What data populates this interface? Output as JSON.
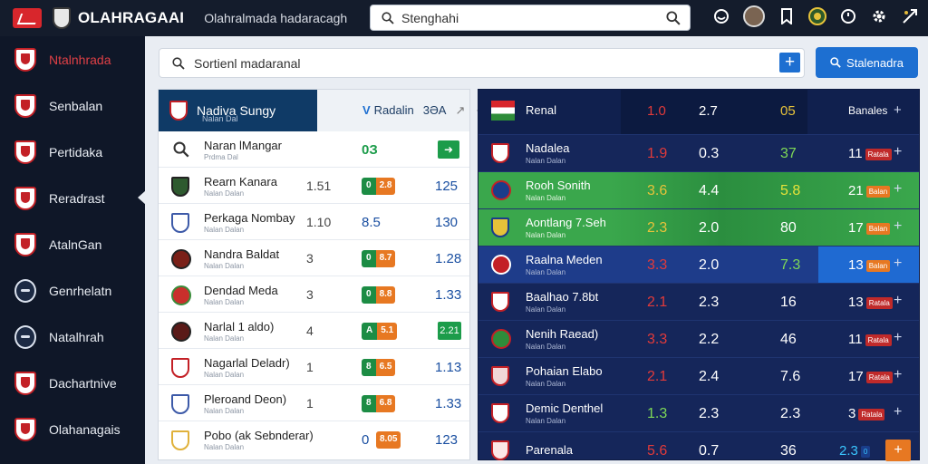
{
  "topbar": {
    "brand": "OLAHRAGAAI",
    "subtitle": "Olahralmada hadaracagh",
    "search_value": "Stenghahi"
  },
  "sidebar": {
    "items": [
      {
        "label": "Ntalnhrada",
        "active": true
      },
      {
        "label": "Senbalan"
      },
      {
        "label": "Pertidaka"
      },
      {
        "label": "Reradrast"
      },
      {
        "label": "AtalnGan"
      },
      {
        "label": "Genrhelatn"
      },
      {
        "label": "Natalhrah"
      },
      {
        "label": "Dachartnive"
      },
      {
        "label": "Olahanagais"
      }
    ]
  },
  "center_search": {
    "label": "Sortienl madaranal",
    "button_label": "Stalenadra"
  },
  "left_panel": {
    "header": {
      "title": "Nadiva Sungy",
      "sub": "Nalan Dal",
      "tab_label": "Radalin",
      "tab_odd": "3ƏA"
    },
    "search_row": {
      "name": "Naran lMangar",
      "sub": "Prdma Dal",
      "value": "0З"
    },
    "rows": [
      {
        "name": "Rearn Kanara",
        "sub": "Nalan Dalan",
        "c1": "1.51",
        "pill_a": "0",
        "pill_b": "2.8",
        "c3": "125"
      },
      {
        "name": "Perkaga Nombay",
        "sub": "Nalan Dalan",
        "c1": "1.10",
        "plain": "8.5",
        "c3": "130"
      },
      {
        "name": "Nandra Baldat",
        "sub": "Nalan Dalan",
        "c1": "3",
        "pill_a": "0",
        "pill_b": "8.7",
        "c3": "1.28"
      },
      {
        "name": "Dendad Meda",
        "sub": "Nalan Dalan",
        "c1": "3",
        "pill_a": "0",
        "pill_b": "8.8",
        "c3": "1.33"
      },
      {
        "name": "Narlal 1 aldo)",
        "sub": "Nalan Dalan",
        "c1": "4",
        "pill_a": "A",
        "pill_b": "5.1",
        "c3": "2.21"
      },
      {
        "name": "Nagarlal Deladr)",
        "sub": "Nalan Dalan",
        "c1": "1",
        "pill_a": "8",
        "pill_b": "6.5",
        "c3": "1.13"
      },
      {
        "name": "Pleroand Deon)",
        "sub": "Nalan Dalan",
        "c1": "1",
        "pill_a": "8",
        "pill_b": "6.8",
        "c3": "1.33"
      },
      {
        "name": "Pobo (ak Sebnderar)",
        "sub": "Nalan Dalan",
        "c1": "",
        "plain_small": "0",
        "pill_b": "8.05",
        "c3": "123"
      }
    ]
  },
  "right_panel": {
    "header": {
      "name": "Renal",
      "r1": "1.0",
      "r2": "2.7",
      "r3": "05",
      "r4": "Banales"
    },
    "rows": [
      {
        "name": "Nadalea",
        "sub": "Nalan Dalan",
        "r1": "1.9",
        "r2": "0.3",
        "r3": "37",
        "r4": "11",
        "tag": "Ratala"
      },
      {
        "name": "Rooh Sonith",
        "sub": "Nalan Dalan",
        "r1": "3.6",
        "r2": "4.4",
        "r3": "5.8",
        "r4": "21",
        "tag": "Balan",
        "hl": "green"
      },
      {
        "name": "Aontlang 7.Seh",
        "sub": "Nalan Dalan",
        "r1": "2.3",
        "r2": "2.0",
        "r3": "80",
        "r4": "17",
        "tag": "Balan",
        "hl": "green"
      },
      {
        "name": "Raalna Meden",
        "sub": "Nalan Dalan",
        "r1": "3.3",
        "r2": "2.0",
        "r3": "7.3",
        "r4": "13",
        "tag": "Balan",
        "hl": "blue"
      },
      {
        "name": "Baalhao 7.8bt",
        "sub": "Nalan Dalan",
        "r1": "2.1",
        "r2": "2.3",
        "r3": "16",
        "r4": "13",
        "tag": "Ratala"
      },
      {
        "name": "Nenih Raead)",
        "sub": "Nalan Dalan",
        "r1": "3.3",
        "r2": "2.2",
        "r3": "46",
        "r4": "11",
        "tag": "Ratala"
      },
      {
        "name": "Pohaian Elabo",
        "sub": "Nalan Dalan",
        "r1": "2.1",
        "r2": "2.4",
        "r3": "7.6",
        "r4": "17",
        "tag": "Ratala"
      },
      {
        "name": "Demic Denthel",
        "sub": "Nalan Dalan",
        "r1": "1.3",
        "r2": "2.3",
        "r3": "2.3",
        "r4": "3",
        "tag": "Ratala"
      },
      {
        "name": "Parenala",
        "sub": "",
        "r1": "5.6",
        "r2": "0.7",
        "r3": "36",
        "r4": "2.3",
        "tag": "0"
      }
    ]
  },
  "colors": {
    "accent": "#1d6fd1",
    "sidebar": "#0f1728",
    "green": "#1c9c4a",
    "orange": "#e77822",
    "red": "#e23a3a"
  }
}
